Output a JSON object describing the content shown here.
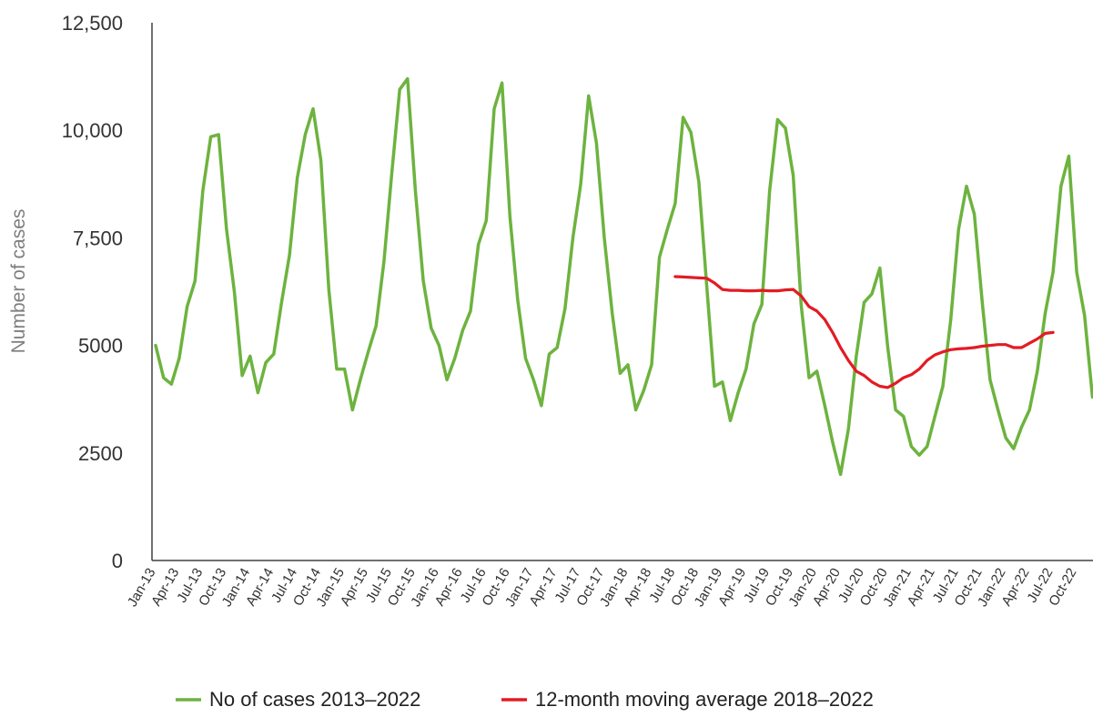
{
  "chart_data": {
    "type": "line",
    "title": "",
    "xlabel": "",
    "ylabel": "Number of cases",
    "ylim": [
      0,
      12500
    ],
    "y_ticks": [
      "0",
      "2500",
      "5000",
      "7,500",
      "10,000",
      "12,500"
    ],
    "y_tick_values": [
      0,
      2500,
      5000,
      7500,
      10000,
      12500
    ],
    "x_tick_labels": [
      "Jan-13",
      "Apr-13",
      "Jul-13",
      "Oct-13",
      "Jan-14",
      "Apr-14",
      "Jul-14",
      "Oct-14",
      "Jan-15",
      "Apr-15",
      "Jul-15",
      "Oct-15",
      "Jan-16",
      "Apr-16",
      "Jul-16",
      "Oct-16",
      "Jan-17",
      "Apr-17",
      "Jul-17",
      "Oct-17",
      "Jan-18",
      "Apr-18",
      "Jul-18",
      "Oct-18",
      "Jan-19",
      "Apr-19",
      "Jul-19",
      "Oct-19",
      "Jan-20",
      "Apr-20",
      "Jul-20",
      "Oct-20",
      "Jan-21",
      "Apr-21",
      "Jul-21",
      "Oct-21",
      "Jan-22",
      "Apr-22",
      "Jul-22",
      "Oct-22"
    ],
    "grid": false,
    "legend_position": "bottom",
    "series": [
      {
        "name": "No of cases 2013–2022",
        "color": "#6db33f",
        "start": "Jan-13",
        "values": [
          5000,
          4250,
          4100,
          4700,
          5900,
          6500,
          8600,
          9850,
          9900,
          7700,
          6250,
          4300,
          4750,
          3900,
          4600,
          4800,
          6000,
          7100,
          8900,
          9900,
          10500,
          9300,
          6300,
          4450,
          4450,
          3500,
          4200,
          4850,
          5450,
          6950,
          9000,
          10950,
          11200,
          8600,
          6500,
          5400,
          5000,
          4200,
          4700,
          5350,
          5800,
          7350,
          7900,
          10500,
          11100,
          8000,
          6050,
          4700,
          4200,
          3600,
          4800,
          4950,
          5850,
          7500,
          8750,
          10800,
          9700,
          7500,
          5750,
          4350,
          4550,
          3500,
          3950,
          4550,
          7050,
          7700,
          8300,
          10300,
          9950,
          8800,
          6400,
          4050,
          4150,
          3250,
          3900,
          4450,
          5500,
          5950,
          8600,
          10250,
          10050,
          8950,
          5950,
          4250,
          4400,
          3600,
          2750,
          2000,
          3050,
          4750,
          6000,
          6200,
          6800,
          4950,
          3500,
          3350,
          2650,
          2450,
          2650,
          3350,
          4050,
          5600,
          7700,
          8700,
          8050,
          6000,
          4200,
          3500,
          2850,
          2600,
          3100,
          3500,
          4400,
          5750,
          6700,
          8700,
          9400,
          6700,
          5700,
          3800
        ]
      },
      {
        "name": "12-month moving average 2018–2022",
        "color": "#e31b23",
        "start": "Jul-18",
        "values": [
          6600,
          6590,
          6580,
          6570,
          6560,
          6450,
          6300,
          6280,
          6280,
          6270,
          6270,
          6280,
          6270,
          6270,
          6290,
          6300,
          6150,
          5900,
          5800,
          5600,
          5300,
          4950,
          4650,
          4400,
          4300,
          4150,
          4050,
          4020,
          4120,
          4250,
          4320,
          4450,
          4650,
          4780,
          4850,
          4900,
          4920,
          4930,
          4950,
          4980,
          5000,
          5020,
          5020,
          4950,
          4950,
          5050,
          5150,
          5280,
          5300
        ]
      }
    ]
  }
}
